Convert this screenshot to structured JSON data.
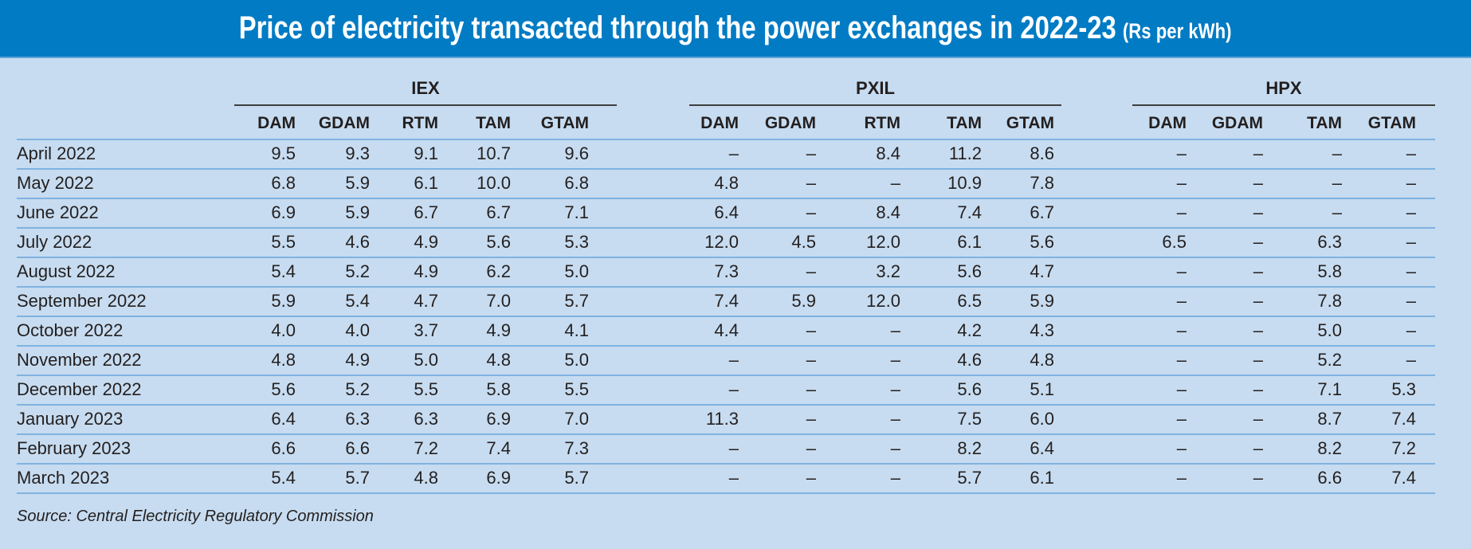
{
  "title": "Price of electricity transacted through the power exchanges in 2022-23",
  "unit": "(Rs per kWh)",
  "groups": [
    {
      "name": "IEX",
      "columns": [
        "DAM",
        "GDAM",
        "RTM",
        "TAM",
        "GTAM"
      ]
    },
    {
      "name": "PXIL",
      "columns": [
        "DAM",
        "GDAM",
        "RTM",
        "TAM",
        "GTAM"
      ]
    },
    {
      "name": "HPX",
      "columns": [
        "DAM",
        "GDAM",
        "TAM",
        "GTAM"
      ]
    }
  ],
  "rows": [
    {
      "month": "April 2022",
      "values": [
        "9.5",
        "9.3",
        "9.1",
        "10.7",
        "9.6",
        "–",
        "–",
        "8.4",
        "11.2",
        "8.6",
        "–",
        "–",
        "–",
        "–"
      ]
    },
    {
      "month": "May 2022",
      "values": [
        "6.8",
        "5.9",
        "6.1",
        "10.0",
        "6.8",
        "4.8",
        "–",
        "–",
        "10.9",
        "7.8",
        "–",
        "–",
        "–",
        "–"
      ]
    },
    {
      "month": "June 2022",
      "values": [
        "6.9",
        "5.9",
        "6.7",
        "6.7",
        "7.1",
        "6.4",
        "–",
        "8.4",
        "7.4",
        "6.7",
        "–",
        "–",
        "–",
        "–"
      ]
    },
    {
      "month": "July 2022",
      "values": [
        "5.5",
        "4.6",
        "4.9",
        "5.6",
        "5.3",
        "12.0",
        "4.5",
        "12.0",
        "6.1",
        "5.6",
        "6.5",
        "–",
        "6.3",
        "–"
      ]
    },
    {
      "month": "August 2022",
      "values": [
        "5.4",
        "5.2",
        "4.9",
        "6.2",
        "5.0",
        "7.3",
        "–",
        "3.2",
        "5.6",
        "4.7",
        "–",
        "–",
        "5.8",
        "–"
      ]
    },
    {
      "month": "September 2022",
      "values": [
        "5.9",
        "5.4",
        "4.7",
        "7.0",
        "5.7",
        "7.4",
        "5.9",
        "12.0",
        "6.5",
        "5.9",
        "–",
        "–",
        "7.8",
        "–"
      ]
    },
    {
      "month": "October 2022",
      "values": [
        "4.0",
        "4.0",
        "3.7",
        "4.9",
        "4.1",
        "4.4",
        "–",
        "–",
        "4.2",
        "4.3",
        "–",
        "–",
        "5.0",
        "–"
      ]
    },
    {
      "month": "November 2022",
      "values": [
        "4.8",
        "4.9",
        "5.0",
        "4.8",
        "5.0",
        "–",
        "–",
        "–",
        "4.6",
        "4.8",
        "–",
        "–",
        "5.2",
        "–"
      ]
    },
    {
      "month": "December 2022",
      "values": [
        "5.6",
        "5.2",
        "5.5",
        "5.8",
        "5.5",
        "–",
        "–",
        "–",
        "5.6",
        "5.1",
        "–",
        "–",
        "7.1",
        "5.3"
      ]
    },
    {
      "month": "January 2023",
      "values": [
        "6.4",
        "6.3",
        "6.3",
        "6.9",
        "7.0",
        "11.3",
        "–",
        "–",
        "7.5",
        "6.0",
        "–",
        "–",
        "8.7",
        "7.4"
      ]
    },
    {
      "month": "February 2023",
      "values": [
        "6.6",
        "6.6",
        "7.2",
        "7.4",
        "7.3",
        "–",
        "–",
        "–",
        "8.2",
        "6.4",
        "–",
        "–",
        "8.2",
        "7.2"
      ]
    },
    {
      "month": "March 2023",
      "values": [
        "5.4",
        "5.7",
        "4.8",
        "6.9",
        "5.7",
        "–",
        "–",
        "–",
        "5.7",
        "6.1",
        "–",
        "–",
        "6.6",
        "7.4"
      ]
    }
  ],
  "source": "Source: Central Electricity Regulatory Commission",
  "colors": {
    "header_bg": "#007bc4",
    "body_bg": "#c7dcf0",
    "row_line": "#7fb2e0"
  }
}
